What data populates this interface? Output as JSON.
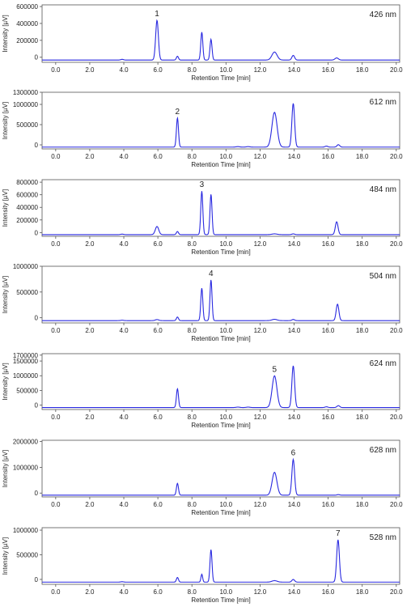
{
  "chart_data": [
    {
      "type": "line",
      "wavelength": "426 nm",
      "xlabel": "Retention Time [min]",
      "ylabel": "Intensity [µV]",
      "xlim": [
        -0.8,
        20.2
      ],
      "ylim": [
        -60000,
        620000
      ],
      "yticks": [
        0,
        200000,
        400000,
        600000
      ],
      "xticks": [
        0.0,
        2.0,
        4.0,
        6.0,
        8.0,
        10.0,
        12.0,
        14.0,
        16.0,
        18.0,
        20.0
      ],
      "peaks": [
        {
          "t": 3.9,
          "h": 8000,
          "w": 0.08
        },
        {
          "t": 5.95,
          "h": 470000,
          "w": 0.08
        },
        {
          "t": 7.15,
          "h": 45000,
          "w": 0.06
        },
        {
          "t": 8.58,
          "h": 330000,
          "w": 0.06
        },
        {
          "t": 9.12,
          "h": 245000,
          "w": 0.06
        },
        {
          "t": 12.85,
          "h": 95000,
          "w": 0.15
        },
        {
          "t": 13.95,
          "h": 55000,
          "w": 0.08
        },
        {
          "t": 16.5,
          "h": 25000,
          "w": 0.1
        }
      ],
      "peak_label": {
        "text": "1",
        "t": 5.95
      }
    },
    {
      "type": "line",
      "wavelength": "612 nm",
      "xlabel": "Retention Time [min]",
      "ylabel": "Intensity [µV]",
      "xlim": [
        -0.8,
        20.2
      ],
      "ylim": [
        -100000,
        1300000
      ],
      "yticks": [
        0,
        500000,
        1000000,
        1300000
      ],
      "xticks": [
        0.0,
        2.0,
        4.0,
        6.0,
        8.0,
        10.0,
        12.0,
        14.0,
        16.0,
        18.0,
        20.0
      ],
      "peaks": [
        {
          "t": 7.15,
          "h": 720000,
          "w": 0.06
        },
        {
          "t": 10.7,
          "h": 12000,
          "w": 0.1
        },
        {
          "t": 11.3,
          "h": 12000,
          "w": 0.1
        },
        {
          "t": 12.85,
          "h": 860000,
          "w": 0.15
        },
        {
          "t": 13.95,
          "h": 1080000,
          "w": 0.08
        },
        {
          "t": 15.9,
          "h": 25000,
          "w": 0.08
        },
        {
          "t": 16.6,
          "h": 60000,
          "w": 0.08
        }
      ],
      "peak_label": {
        "text": "2",
        "t": 7.15
      }
    },
    {
      "type": "line",
      "wavelength": "484 nm",
      "xlabel": "Retention Time [min]",
      "ylabel": "Intensity [µV]",
      "xlim": [
        -0.8,
        20.2
      ],
      "ylim": [
        -60000,
        840000
      ],
      "yticks": [
        0,
        200000,
        400000,
        600000,
        800000
      ],
      "xticks": [
        0.0,
        2.0,
        4.0,
        6.0,
        8.0,
        10.0,
        12.0,
        14.0,
        16.0,
        18.0,
        20.0
      ],
      "peaks": [
        {
          "t": 3.9,
          "h": 8000,
          "w": 0.08
        },
        {
          "t": 5.95,
          "h": 130000,
          "w": 0.1
        },
        {
          "t": 7.15,
          "h": 50000,
          "w": 0.06
        },
        {
          "t": 8.58,
          "h": 690000,
          "w": 0.06
        },
        {
          "t": 9.12,
          "h": 640000,
          "w": 0.06
        },
        {
          "t": 12.85,
          "h": 12000,
          "w": 0.15
        },
        {
          "t": 13.95,
          "h": 12000,
          "w": 0.08
        },
        {
          "t": 16.5,
          "h": 205000,
          "w": 0.08
        }
      ],
      "peak_label": {
        "text": "3",
        "t": 8.58
      }
    },
    {
      "type": "line",
      "wavelength": "504 nm",
      "xlabel": "Retention Time [min]",
      "ylabel": "Intensity [µV]",
      "xlim": [
        -0.8,
        20.2
      ],
      "ylim": [
        -100000,
        1000000
      ],
      "yticks": [
        0,
        500000,
        1000000
      ],
      "xticks": [
        0.0,
        2.0,
        4.0,
        6.0,
        8.0,
        10.0,
        12.0,
        14.0,
        16.0,
        18.0,
        20.0
      ],
      "peaks": [
        {
          "t": 3.9,
          "h": 8000,
          "w": 0.08
        },
        {
          "t": 5.95,
          "h": 20000,
          "w": 0.1
        },
        {
          "t": 7.15,
          "h": 70000,
          "w": 0.06
        },
        {
          "t": 8.58,
          "h": 630000,
          "w": 0.06
        },
        {
          "t": 9.12,
          "h": 790000,
          "w": 0.06
        },
        {
          "t": 12.85,
          "h": 25000,
          "w": 0.15
        },
        {
          "t": 13.95,
          "h": 22000,
          "w": 0.08
        },
        {
          "t": 16.55,
          "h": 320000,
          "w": 0.08
        }
      ],
      "peak_label": {
        "text": "4",
        "t": 9.12
      }
    },
    {
      "type": "line",
      "wavelength": "624 nm",
      "xlabel": "Retention Time [min]",
      "ylabel": "Intensity [µV]",
      "xlim": [
        -0.8,
        20.2
      ],
      "ylim": [
        -150000,
        1750000
      ],
      "yticks": [
        0,
        500000,
        1000000,
        1500000,
        1700000
      ],
      "xticks": [
        0.0,
        2.0,
        4.0,
        6.0,
        8.0,
        10.0,
        12.0,
        14.0,
        16.0,
        18.0,
        20.0
      ],
      "peaks": [
        {
          "t": 7.15,
          "h": 640000,
          "w": 0.06
        },
        {
          "t": 10.7,
          "h": 15000,
          "w": 0.1
        },
        {
          "t": 11.3,
          "h": 15000,
          "w": 0.1
        },
        {
          "t": 12.85,
          "h": 1080000,
          "w": 0.14
        },
        {
          "t": 13.95,
          "h": 1420000,
          "w": 0.08
        },
        {
          "t": 15.9,
          "h": 25000,
          "w": 0.08
        },
        {
          "t": 16.6,
          "h": 65000,
          "w": 0.08
        }
      ],
      "peak_label": {
        "text": "5",
        "t": 12.85
      }
    },
    {
      "type": "line",
      "wavelength": "628 nm",
      "xlabel": "Retention Time [min]",
      "ylabel": "Intensity [µV]",
      "xlim": [
        -0.8,
        20.2
      ],
      "ylim": [
        -150000,
        2050000
      ],
      "yticks": [
        0,
        1000000,
        2000000
      ],
      "xticks": [
        0.0,
        2.0,
        4.0,
        6.0,
        8.0,
        10.0,
        12.0,
        14.0,
        16.0,
        18.0,
        20.0
      ],
      "peaks": [
        {
          "t": 7.15,
          "h": 460000,
          "w": 0.06
        },
        {
          "t": 12.85,
          "h": 890000,
          "w": 0.14
        },
        {
          "t": 13.95,
          "h": 1390000,
          "w": 0.08
        },
        {
          "t": 16.6,
          "h": 22000,
          "w": 0.08
        }
      ],
      "peak_label": {
        "text": "6",
        "t": 13.95
      }
    },
    {
      "type": "line",
      "wavelength": "528 nm",
      "xlabel": "Retention Time [min]",
      "ylabel": "Intensity [µV]",
      "xlim": [
        -0.8,
        20.2
      ],
      "ylim": [
        -100000,
        1050000
      ],
      "yticks": [
        0,
        500000,
        1000000
      ],
      "xticks": [
        0.0,
        2.0,
        4.0,
        6.0,
        8.0,
        10.0,
        12.0,
        14.0,
        16.0,
        18.0,
        20.0
      ],
      "peaks": [
        {
          "t": 3.9,
          "h": 8000,
          "w": 0.08
        },
        {
          "t": 7.15,
          "h": 95000,
          "w": 0.06
        },
        {
          "t": 8.58,
          "h": 160000,
          "w": 0.05
        },
        {
          "t": 9.12,
          "h": 660000,
          "w": 0.06
        },
        {
          "t": 12.85,
          "h": 30000,
          "w": 0.15
        },
        {
          "t": 13.95,
          "h": 55000,
          "w": 0.08
        },
        {
          "t": 16.58,
          "h": 860000,
          "w": 0.08
        }
      ],
      "peak_label": {
        "text": "7",
        "t": 16.58
      }
    }
  ],
  "colors": {
    "trace": "#2a2ae0",
    "axis": "#555555",
    "grid": "#d9d9d9",
    "text": "#222222"
  }
}
